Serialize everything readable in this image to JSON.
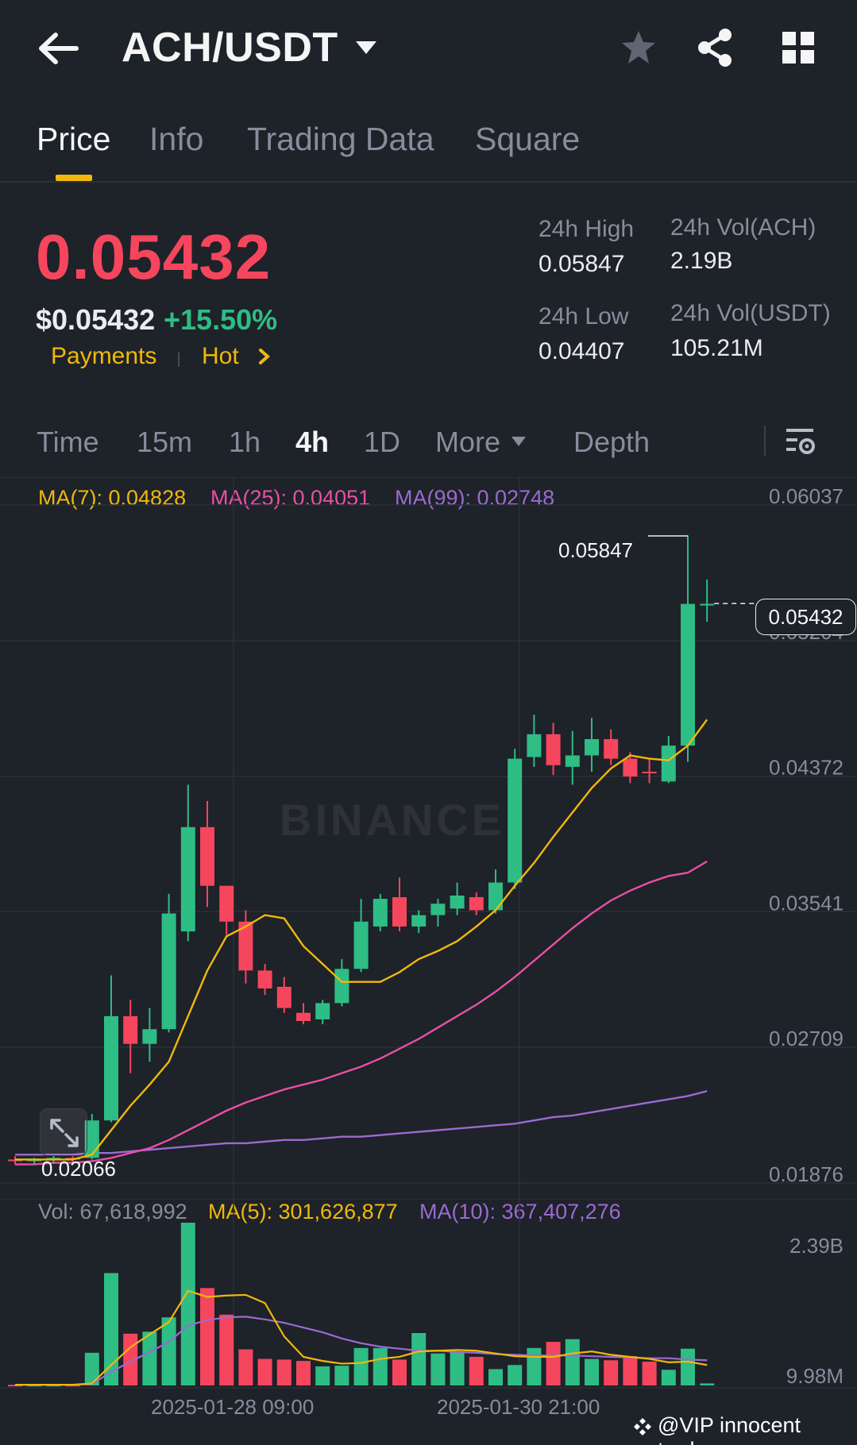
{
  "header": {
    "pair": "ACH/USDT"
  },
  "tabs": [
    "Price",
    "Info",
    "Trading Data",
    "Square"
  ],
  "price": {
    "last": "0.05432",
    "usd": "$0.05432",
    "change": "+15.50%",
    "tags": [
      "Payments",
      "Hot"
    ]
  },
  "stats": {
    "high_label": "24h High",
    "high_value": "0.05847",
    "low_label": "24h Low",
    "low_value": "0.04407",
    "vol_base_label": "24h Vol(ACH)",
    "vol_base_value": "2.19B",
    "vol_quote_label": "24h Vol(USDT)",
    "vol_quote_value": "105.21M"
  },
  "intervals": {
    "items": [
      "Time",
      "15m",
      "1h",
      "4h",
      "1D",
      "More",
      "Depth"
    ],
    "active": "4h"
  },
  "ma_legend": {
    "ma7": "MA(7): 0.04828",
    "ma25": "MA(25): 0.04051",
    "ma99": "MA(99): 0.02748"
  },
  "vol_legend": {
    "vol": "Vol: 67,618,992",
    "ma5": "MA(5): 301,626,877",
    "ma10": "MA(10): 367,407,276"
  },
  "colors": {
    "up": "#2ebd85",
    "down": "#f6465d",
    "accent": "#f0b90b",
    "ma7": "#f0b90b",
    "ma25": "#e84fa6",
    "ma99": "#9a6bd0",
    "muted": "#848e9c"
  },
  "watermark": "BINANCE",
  "chart_data": {
    "type": "candlestick",
    "y_ticks": [
      "0.06037",
      "0.05204",
      "0.04372",
      "0.03541",
      "0.02709",
      "0.01876"
    ],
    "y_range": [
      0.01876,
      0.06037
    ],
    "current_price": "0.05432",
    "high_marker": "0.05847",
    "low_marker": "0.02066",
    "candles": [
      {
        "o": 0.0202,
        "h": 0.0204,
        "l": 0.0199,
        "c": 0.0201
      },
      {
        "o": 0.0201,
        "h": 0.0203,
        "l": 0.0199,
        "c": 0.0202
      },
      {
        "o": 0.0202,
        "h": 0.0205,
        "l": 0.02,
        "c": 0.0203
      },
      {
        "o": 0.0203,
        "h": 0.0204,
        "l": 0.02,
        "c": 0.0202
      },
      {
        "o": 0.0203,
        "h": 0.023,
        "l": 0.0202,
        "c": 0.0226
      },
      {
        "o": 0.0226,
        "h": 0.0315,
        "l": 0.0225,
        "c": 0.029
      },
      {
        "o": 0.029,
        "h": 0.03,
        "l": 0.0255,
        "c": 0.0273
      },
      {
        "o": 0.0273,
        "h": 0.0295,
        "l": 0.0262,
        "c": 0.0282
      },
      {
        "o": 0.0282,
        "h": 0.0365,
        "l": 0.028,
        "c": 0.0353
      },
      {
        "o": 0.0342,
        "h": 0.0432,
        "l": 0.0336,
        "c": 0.0406
      },
      {
        "o": 0.0406,
        "h": 0.0422,
        "l": 0.0357,
        "c": 0.037
      },
      {
        "o": 0.037,
        "h": 0.037,
        "l": 0.034,
        "c": 0.0348
      },
      {
        "o": 0.0348,
        "h": 0.0355,
        "l": 0.031,
        "c": 0.0318
      },
      {
        "o": 0.0318,
        "h": 0.0322,
        "l": 0.0303,
        "c": 0.0307
      },
      {
        "o": 0.0308,
        "h": 0.0314,
        "l": 0.0292,
        "c": 0.0295
      },
      {
        "o": 0.0292,
        "h": 0.0298,
        "l": 0.0285,
        "c": 0.0287
      },
      {
        "o": 0.0288,
        "h": 0.03,
        "l": 0.0285,
        "c": 0.0298
      },
      {
        "o": 0.0298,
        "h": 0.0325,
        "l": 0.0296,
        "c": 0.0319
      },
      {
        "o": 0.0319,
        "h": 0.0362,
        "l": 0.0317,
        "c": 0.0348
      },
      {
        "o": 0.0345,
        "h": 0.0365,
        "l": 0.0342,
        "c": 0.0362
      },
      {
        "o": 0.0363,
        "h": 0.0375,
        "l": 0.0342,
        "c": 0.0345
      },
      {
        "o": 0.0345,
        "h": 0.0355,
        "l": 0.0341,
        "c": 0.0352
      },
      {
        "o": 0.0352,
        "h": 0.0362,
        "l": 0.0345,
        "c": 0.0359
      },
      {
        "o": 0.0356,
        "h": 0.0372,
        "l": 0.0352,
        "c": 0.0364
      },
      {
        "o": 0.0363,
        "h": 0.0366,
        "l": 0.0352,
        "c": 0.0355
      },
      {
        "o": 0.0355,
        "h": 0.038,
        "l": 0.0353,
        "c": 0.0372
      },
      {
        "o": 0.0372,
        "h": 0.0454,
        "l": 0.0368,
        "c": 0.0448
      },
      {
        "o": 0.0449,
        "h": 0.0475,
        "l": 0.0443,
        "c": 0.0463
      },
      {
        "o": 0.0463,
        "h": 0.047,
        "l": 0.0438,
        "c": 0.0444
      },
      {
        "o": 0.0443,
        "h": 0.0465,
        "l": 0.0432,
        "c": 0.045
      },
      {
        "o": 0.045,
        "h": 0.0473,
        "l": 0.044,
        "c": 0.046
      },
      {
        "o": 0.046,
        "h": 0.0466,
        "l": 0.0444,
        "c": 0.0448
      },
      {
        "o": 0.0448,
        "h": 0.0452,
        "l": 0.0433,
        "c": 0.0437
      },
      {
        "o": 0.044,
        "h": 0.0448,
        "l": 0.0433,
        "c": 0.0439
      },
      {
        "o": 0.0434,
        "h": 0.0462,
        "l": 0.0433,
        "c": 0.0456
      },
      {
        "o": 0.0456,
        "h": 0.0585,
        "l": 0.0446,
        "c": 0.0543
      },
      {
        "o": 0.0542,
        "h": 0.0558,
        "l": 0.0532,
        "c": 0.0543
      }
    ],
    "ma7": [
      0.0202,
      0.0202,
      0.0202,
      0.0202,
      0.0205,
      0.022,
      0.0235,
      0.0248,
      0.0262,
      0.029,
      0.0318,
      0.0339,
      0.0345,
      0.0352,
      0.035,
      0.0333,
      0.0322,
      0.0311,
      0.0311,
      0.0311,
      0.0317,
      0.0325,
      0.033,
      0.0336,
      0.0345,
      0.0355,
      0.037,
      0.0384,
      0.04,
      0.0415,
      0.043,
      0.0442,
      0.045,
      0.0448,
      0.0447,
      0.0456,
      0.0472
    ],
    "ma25": [
      0.0199,
      0.0199,
      0.02,
      0.02,
      0.0201,
      0.0203,
      0.0206,
      0.0209,
      0.0214,
      0.022,
      0.0226,
      0.0232,
      0.0237,
      0.0241,
      0.0245,
      0.0248,
      0.0251,
      0.0255,
      0.0259,
      0.0264,
      0.027,
      0.0276,
      0.0283,
      0.029,
      0.0297,
      0.0305,
      0.0314,
      0.0324,
      0.0334,
      0.0344,
      0.0353,
      0.0361,
      0.0367,
      0.0372,
      0.0376,
      0.0378,
      0.0385
    ],
    "ma99": [
      0.0205,
      0.0205,
      0.0205,
      0.0205,
      0.0206,
      0.0206,
      0.0207,
      0.0208,
      0.0209,
      0.021,
      0.0211,
      0.0212,
      0.0212,
      0.0213,
      0.0214,
      0.0214,
      0.0215,
      0.0216,
      0.0216,
      0.0217,
      0.0218,
      0.0219,
      0.022,
      0.0221,
      0.0222,
      0.0223,
      0.0224,
      0.0226,
      0.0228,
      0.0229,
      0.0231,
      0.0233,
      0.0235,
      0.0237,
      0.0239,
      0.0241,
      0.0244
    ],
    "volume": {
      "y_ticks": [
        "2.39B",
        "9.98M"
      ],
      "y_range": [
        0,
        2390000000
      ],
      "values": [
        10,
        10,
        10,
        10,
        480,
        1650,
        760,
        790,
        1000,
        2390,
        1430,
        1040,
        530,
        390,
        380,
        360,
        280,
        290,
        550,
        550,
        380,
        770,
        470,
        490,
        420,
        240,
        300,
        550,
        640,
        680,
        390,
        370,
        430,
        350,
        230,
        540,
        30
      ],
      "ma5": [
        10,
        10,
        10,
        10,
        30,
        300,
        560,
        750,
        930,
        1390,
        1300,
        1320,
        1330,
        1210,
        720,
        420,
        360,
        320,
        330,
        390,
        420,
        500,
        510,
        520,
        510,
        470,
        430,
        420,
        420,
        470,
        500,
        450,
        420,
        390,
        340,
        350,
        300
      ],
      "ma10": [
        10,
        10,
        10,
        10,
        20,
        200,
        350,
        490,
        640,
        880,
        960,
        1000,
        1010,
        970,
        920,
        850,
        780,
        690,
        620,
        570,
        540,
        510,
        510,
        490,
        480,
        460,
        450,
        440,
        440,
        440,
        430,
        420,
        410,
        400,
        400,
        380,
        370
      ]
    },
    "x_labels": [
      "2025-01-28 09:00",
      "2025-01-30 21:00"
    ]
  },
  "credit": "@VIP innocent trader"
}
